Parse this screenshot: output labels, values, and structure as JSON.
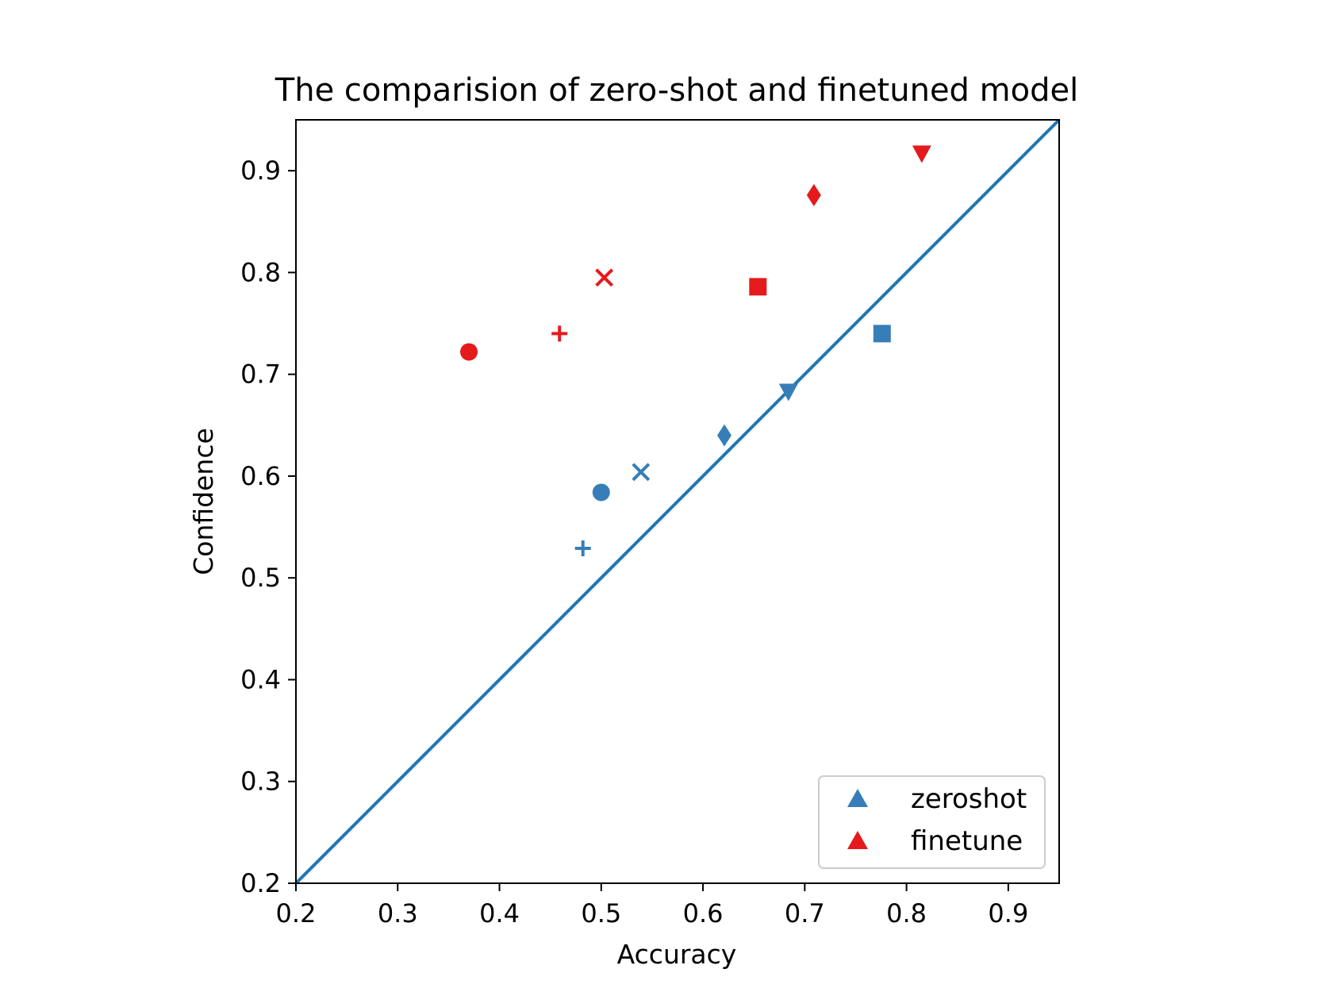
{
  "chart_data": {
    "type": "scatter",
    "title": "The comparision of zero-shot and finetuned model",
    "xlabel": "Accuracy",
    "ylabel": "Confidence",
    "xlim": [
      0.2,
      0.95
    ],
    "ylim": [
      0.2,
      0.95
    ],
    "xticks": [
      "0.2",
      "0.3",
      "0.4",
      "0.5",
      "0.6",
      "0.7",
      "0.8",
      "0.9"
    ],
    "yticks": [
      "0.2",
      "0.3",
      "0.4",
      "0.5",
      "0.6",
      "0.7",
      "0.8",
      "0.9"
    ],
    "grid": false,
    "legend_position": "lower-right",
    "reference_line": {
      "from": [
        0.2,
        0.2
      ],
      "to": [
        0.95,
        0.95
      ],
      "color": "#1f77b4"
    },
    "series": [
      {
        "name": "zeroshot",
        "color": "#377eb8",
        "points": [
          {
            "x": 0.482,
            "y": 0.529,
            "marker": "plus"
          },
          {
            "x": 0.5,
            "y": 0.584,
            "marker": "circle"
          },
          {
            "x": 0.539,
            "y": 0.604,
            "marker": "x"
          },
          {
            "x": 0.621,
            "y": 0.64,
            "marker": "diamond"
          },
          {
            "x": 0.684,
            "y": 0.683,
            "marker": "triangle-down"
          },
          {
            "x": 0.776,
            "y": 0.74,
            "marker": "square"
          }
        ]
      },
      {
        "name": "finetune",
        "color": "#e41a1c",
        "points": [
          {
            "x": 0.37,
            "y": 0.722,
            "marker": "circle"
          },
          {
            "x": 0.459,
            "y": 0.74,
            "marker": "plus"
          },
          {
            "x": 0.503,
            "y": 0.795,
            "marker": "x"
          },
          {
            "x": 0.654,
            "y": 0.786,
            "marker": "square"
          },
          {
            "x": 0.709,
            "y": 0.876,
            "marker": "diamond"
          },
          {
            "x": 0.815,
            "y": 0.917,
            "marker": "triangle-down"
          }
        ]
      }
    ]
  }
}
